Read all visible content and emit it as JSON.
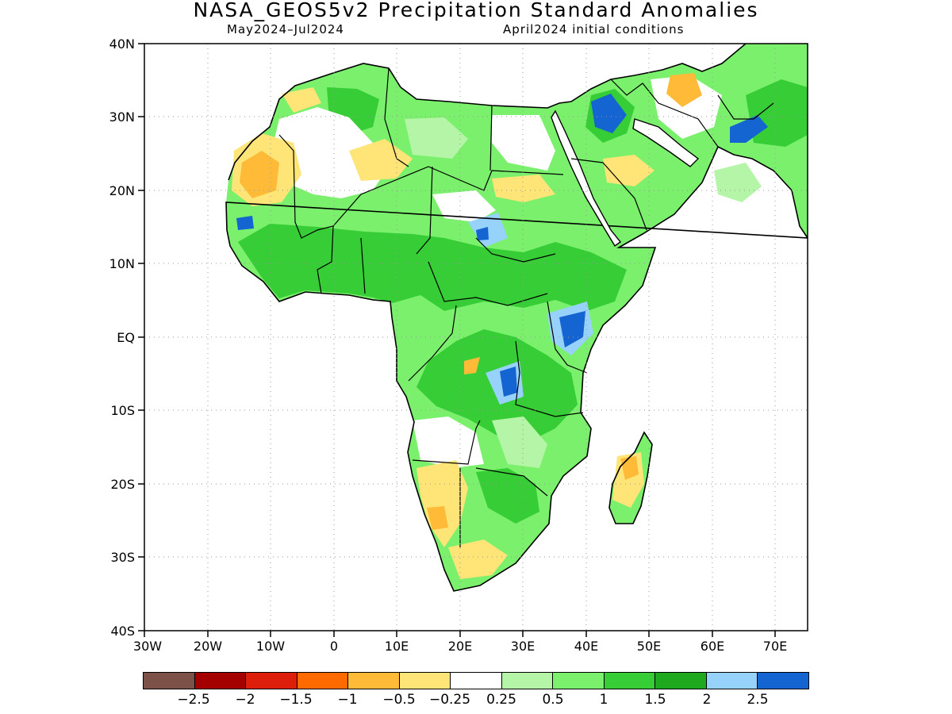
{
  "title": "NASA_GEOS5v2 Precipitation Standard Anomalies",
  "subtitle_left": "May2024–Jul2024",
  "subtitle_right": "April2024 initial conditions",
  "map": {
    "lon_range": [
      -30,
      75
    ],
    "lat_range": [
      -40,
      40
    ],
    "lon_ticks": [
      "30W",
      "20W",
      "10W",
      "0",
      "10E",
      "20E",
      "30E",
      "40E",
      "50E",
      "60E",
      "70E"
    ],
    "lat_ticks": [
      "40N",
      "30N",
      "20N",
      "10N",
      "EQ",
      "10S",
      "20S",
      "30S",
      "40S"
    ],
    "grid": "dotted"
  },
  "legend": {
    "colors": [
      "#7b5148",
      "#a50000",
      "#dd1e0a",
      "#ff6a00",
      "#ffbb38",
      "#ffe478",
      "#ffffff",
      "#b4f5a8",
      "#7af06c",
      "#36cd36",
      "#1ea91e",
      "#96d2fa",
      "#1464d2"
    ],
    "labels": [
      "−2.5",
      "−2",
      "−1.5",
      "−1",
      "−0.5",
      "−0.25",
      "0.25",
      "0.5",
      "1",
      "1.5",
      "2",
      "2.5"
    ]
  },
  "regions": [
    {
      "category": "1.5",
      "color": "#36cd36"
    },
    {
      "category": "1",
      "color": "#7af06c"
    },
    {
      "category": "0.5",
      "color": "#b4f5a8"
    },
    {
      "category": "-0.25",
      "color": "#ffe478"
    },
    {
      "category": "-0.5",
      "color": "#ffbb38"
    },
    {
      "category": "2",
      "color": "#1ea91e"
    },
    {
      "category": "2.5",
      "color": "#1464d2"
    },
    {
      "category": "2.5-light",
      "color": "#96d2fa"
    }
  ]
}
